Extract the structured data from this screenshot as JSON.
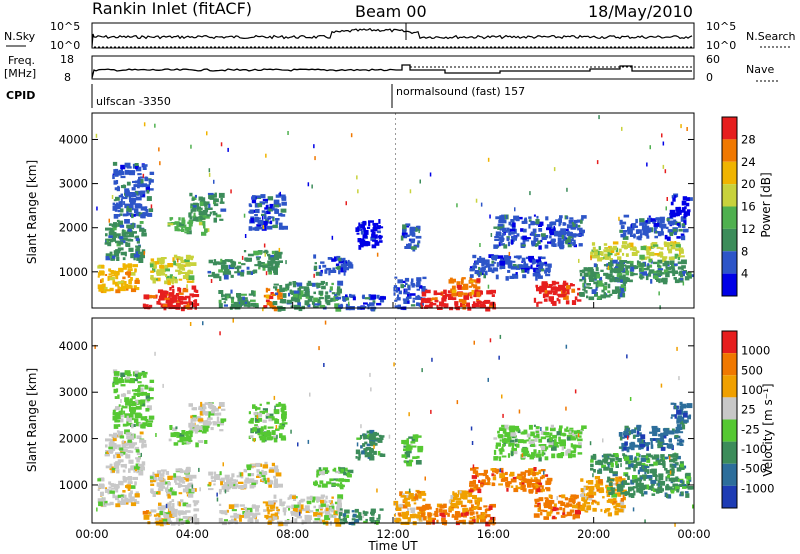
{
  "header": {
    "station": "Rankin Inlet (fitACF)",
    "beam": "Beam 00",
    "date": "18/May/2010"
  },
  "top_panels": {
    "nsky_label": "N.Sky",
    "nsky_ticks": [
      "10^5",
      "10^0"
    ],
    "nsearch_label": "N.Search",
    "nsearch_ticks": [
      "10^5",
      "10^0"
    ],
    "freq_label": "Freq.",
    "freq_unit": "[MHz]",
    "freq_ticks": [
      "18",
      "8"
    ],
    "nave_label": "Nave",
    "nave_ticks": [
      "60",
      "0"
    ],
    "cpid_label": "CPID",
    "cpid_entries": [
      "ulfscan -3350",
      "normalsound (fast) 157"
    ]
  },
  "chart_data": [
    {
      "type": "heatmap",
      "name": "power",
      "ylabel": "Slant Range [km]",
      "xlabel": "Time UT",
      "x_ticks": [
        "00:00",
        "04:00",
        "08:00",
        "12:00",
        "16:00",
        "20:00",
        "00:00"
      ],
      "y_ticks": [
        "1000",
        "2000",
        "3000",
        "4000"
      ],
      "ylim": [
        180,
        4600
      ],
      "xlim_hours": [
        0,
        24
      ],
      "colorbar": {
        "label": "Power [dB]",
        "ticks": [
          "28",
          "24",
          "20",
          "16",
          "12",
          "8",
          "4"
        ],
        "colors": [
          "#0000e6",
          "#2d55c8",
          "#3c8c5a",
          "#4fb04f",
          "#c8d23c",
          "#f0b400",
          "#f07800",
          "#e61e1e"
        ]
      }
    },
    {
      "type": "heatmap",
      "name": "velocity",
      "ylabel": "Slant Range [km]",
      "xlabel": "Time UT",
      "x_ticks": [
        "00:00",
        "04:00",
        "08:00",
        "12:00",
        "16:00",
        "20:00",
        "00:00"
      ],
      "y_ticks": [
        "1000",
        "2000",
        "3000",
        "4000"
      ],
      "ylim": [
        180,
        4600
      ],
      "xlim_hours": [
        0,
        24
      ],
      "colorbar": {
        "label": "Velocity [m s⁻¹]",
        "ticks": [
          "1000",
          "500",
          "100",
          "25",
          "-25",
          "-100",
          "-500",
          "-1000"
        ],
        "colors": [
          "#1e3cb4",
          "#2d6e9b",
          "#3c8c5a",
          "#55c832",
          "#c8c8c8",
          "#f0a000",
          "#f07800",
          "#e61e1e"
        ]
      }
    }
  ]
}
